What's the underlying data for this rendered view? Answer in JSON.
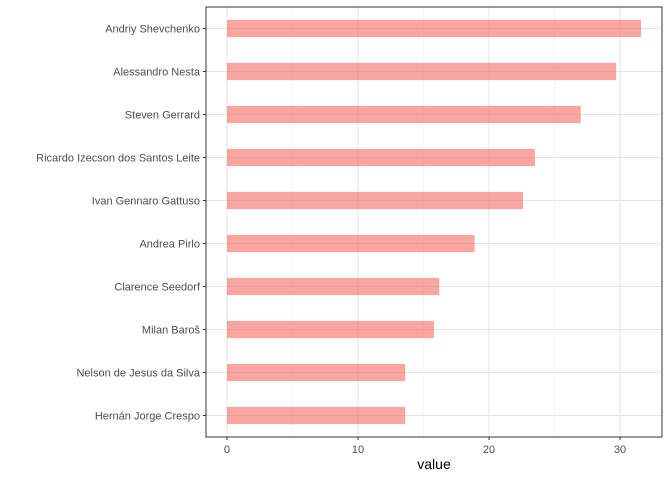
{
  "chart_data": {
    "type": "bar",
    "orientation": "horizontal",
    "categories": [
      "Andriy Shevchenko",
      "Alessandro Nesta",
      "Steven Gerrard",
      "Ricardo Izecson dos Santos Leite",
      "Ivan Gennaro Gattuso",
      "Andrea Pirlo",
      "Clarence Seedorf",
      "Milan Baroš",
      "Nelson de Jesus da Silva",
      "Hernán Jorge Crespo"
    ],
    "values": [
      31.6,
      29.7,
      27.0,
      23.5,
      22.6,
      18.9,
      16.2,
      15.8,
      13.6,
      13.6
    ],
    "xlabel": "value",
    "ylabel": "",
    "xlim": [
      -1.6,
      33.2
    ],
    "xticks": [
      0,
      10,
      20,
      30
    ],
    "grid": true,
    "bar_color": "#F8766D",
    "bar_opacity": 0.65
  }
}
